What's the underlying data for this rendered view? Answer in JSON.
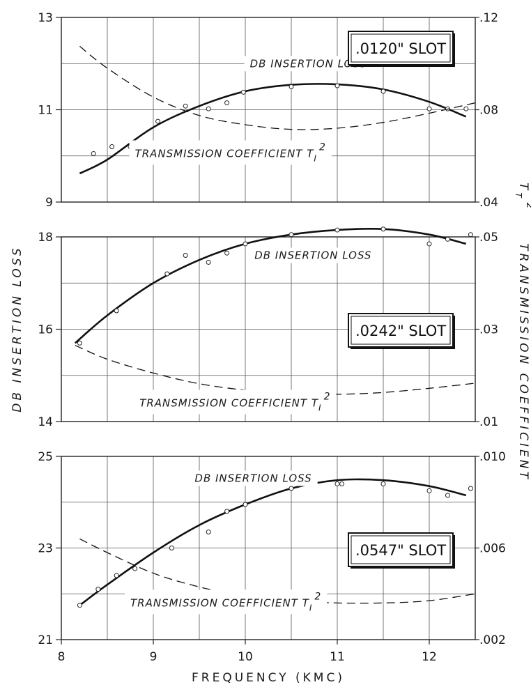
{
  "chart_data": {
    "type": "line",
    "xlabel": "FREQUENCY (KMC)",
    "ylabel_left": "DB INSERTION LOSS",
    "ylabel_right": "TRANSMISSION COEFFICIENT",
    "ylabel_right_symbol": "T",
    "ylabel_right_sub": "T",
    "ylabel_right_sup": "2",
    "xlim": [
      8,
      12.5
    ],
    "xticks": [
      "8",
      "9",
      "10",
      "11",
      "12"
    ],
    "grid": true,
    "panels": [
      {
        "slot_label": ".0120\" SLOT",
        "ylim_left": [
          9,
          13
        ],
        "ylim_right": [
          0.04,
          0.12
        ],
        "yticks_left": [
          "9",
          "11",
          "13"
        ],
        "yticks_right": [
          ".04",
          ".08",
          ".12"
        ],
        "series": [
          {
            "name": "DB INSERTION LOSS",
            "label_tail": "",
            "axis": "left",
            "style": "solid",
            "curve": {
              "x": [
                8.2,
                8.5,
                9.0,
                9.5,
                10.0,
                10.5,
                11.0,
                11.5,
                12.0,
                12.4
              ],
              "y": [
                9.62,
                9.92,
                10.62,
                11.08,
                11.4,
                11.54,
                11.55,
                11.44,
                11.17,
                10.85
              ]
            },
            "points": {
              "x": [
                8.35,
                8.55,
                8.75,
                9.05,
                9.35,
                9.6,
                9.8,
                9.98,
                10.5,
                11.0,
                11.5,
                12.0,
                12.2,
                12.4
              ],
              "y": [
                10.05,
                10.2,
                10.2,
                10.75,
                11.08,
                11.02,
                11.15,
                11.38,
                11.5,
                11.52,
                11.4,
                11.02,
                11.02,
                11.02
              ]
            }
          },
          {
            "name": "TRANSMISSION COEFFICIENT T",
            "label_tail": "I",
            "label_sup": "2",
            "axis": "right",
            "style": "dashed",
            "curve": {
              "x": [
                8.2,
                8.5,
                9.0,
                9.5,
                10.0,
                10.5,
                11.0,
                11.5,
                12.0,
                12.5
              ],
              "y": [
                0.1075,
                0.098,
                0.0855,
                0.0775,
                0.0735,
                0.0715,
                0.072,
                0.0745,
                0.0785,
                0.083
              ]
            }
          }
        ],
        "annotations": [
          {
            "text": "DB INSERTION LOSS",
            "x": 10.05,
            "y": 12.0
          },
          {
            "text": "TRANSMISSION COEFFICIENT",
            "x": 8.8,
            "y": 10.05,
            "tail": "I",
            "sup": "2"
          }
        ]
      },
      {
        "slot_label": ".0242\" SLOT",
        "ylim_left": [
          14,
          18
        ],
        "ylim_right": [
          0.01,
          0.05
        ],
        "yticks_left": [
          "14",
          "16",
          "18"
        ],
        "yticks_right": [
          ".01",
          ".03",
          ".05"
        ],
        "series": [
          {
            "name": "DB INSERTION LOSS",
            "label_tail": "",
            "axis": "left",
            "style": "solid",
            "curve": {
              "x": [
                8.15,
                8.5,
                9.0,
                9.5,
                10.0,
                10.5,
                11.0,
                11.5,
                12.0,
                12.4
              ],
              "y": [
                15.7,
                16.3,
                17.0,
                17.5,
                17.85,
                18.05,
                18.15,
                18.17,
                18.05,
                17.85
              ]
            },
            "points": {
              "x": [
                8.2,
                8.6,
                9.15,
                9.35,
                9.6,
                9.8,
                10.0,
                10.5,
                11.0,
                11.5,
                12.0,
                12.2,
                12.45
              ],
              "y": [
                15.7,
                16.4,
                17.2,
                17.6,
                17.45,
                17.65,
                17.85,
                18.05,
                18.15,
                18.17,
                17.85,
                17.95,
                18.05
              ]
            }
          },
          {
            "name": "TRANSMISSION COEFFICIENT T",
            "label_tail": "I",
            "label_sup": "2",
            "axis": "right",
            "style": "dashed",
            "curve": {
              "x": [
                8.15,
                8.5,
                9.0,
                9.5,
                10.0,
                10.5,
                11.0,
                11.5,
                12.0,
                12.5
              ],
              "y": [
                0.0265,
                0.0235,
                0.0205,
                0.0182,
                0.0168,
                0.016,
                0.0159,
                0.0163,
                0.0172,
                0.0183
              ]
            }
          }
        ],
        "annotations": [
          {
            "text": "DB INSERTION LOSS",
            "x": 10.1,
            "y": 17.6
          },
          {
            "text": "TRANSMISSION COEFFICIENT",
            "x": 8.85,
            "y": 14.4,
            "tail": "I",
            "sup": "2"
          }
        ]
      },
      {
        "slot_label": ".0547\" SLOT",
        "ylim_left": [
          21,
          25
        ],
        "ylim_right": [
          0.002,
          0.01
        ],
        "yticks_left": [
          "21",
          "23",
          "25"
        ],
        "yticks_right": [
          ".002",
          ".006",
          ".010"
        ],
        "series": [
          {
            "name": "DB INSERTION LOSS",
            "label_tail": "",
            "axis": "left",
            "style": "solid",
            "curve": {
              "x": [
                8.2,
                8.5,
                9.0,
                9.5,
                10.0,
                10.5,
                11.0,
                11.5,
                12.0,
                12.4
              ],
              "y": [
                21.75,
                22.2,
                22.9,
                23.5,
                23.95,
                24.3,
                24.48,
                24.48,
                24.35,
                24.15
              ]
            },
            "points": {
              "x": [
                8.2,
                8.4,
                8.6,
                8.8,
                9.2,
                9.6,
                9.8,
                10.0,
                10.5,
                11.0,
                11.05,
                11.5,
                12.0,
                12.2,
                12.45
              ],
              "y": [
                21.75,
                22.1,
                22.4,
                22.55,
                23.0,
                23.35,
                23.8,
                23.95,
                24.3,
                24.4,
                24.4,
                24.4,
                24.25,
                24.15,
                24.3
              ]
            }
          },
          {
            "name": "TRANSMISSION COEFFICIENT T",
            "label_tail": "I",
            "label_sup": "2",
            "axis": "right",
            "style": "dashed",
            "curve": {
              "x": [
                8.2,
                8.5,
                9.0,
                9.5,
                10.0,
                10.5,
                11.0,
                11.5,
                12.0,
                12.5
              ],
              "y": [
                0.0064,
                0.0058,
                0.0049,
                0.0043,
                0.0039,
                0.0037,
                0.0036,
                0.0036,
                0.0037,
                0.004
              ]
            }
          }
        ],
        "annotations": [
          {
            "text": "DB INSERTION LOSS",
            "x": 9.45,
            "y": 24.52
          },
          {
            "text": "TRANSMISSION COEFFICIENT",
            "x": 8.75,
            "y": 21.8,
            "tail": "I",
            "sup": "2"
          }
        ]
      }
    ]
  }
}
